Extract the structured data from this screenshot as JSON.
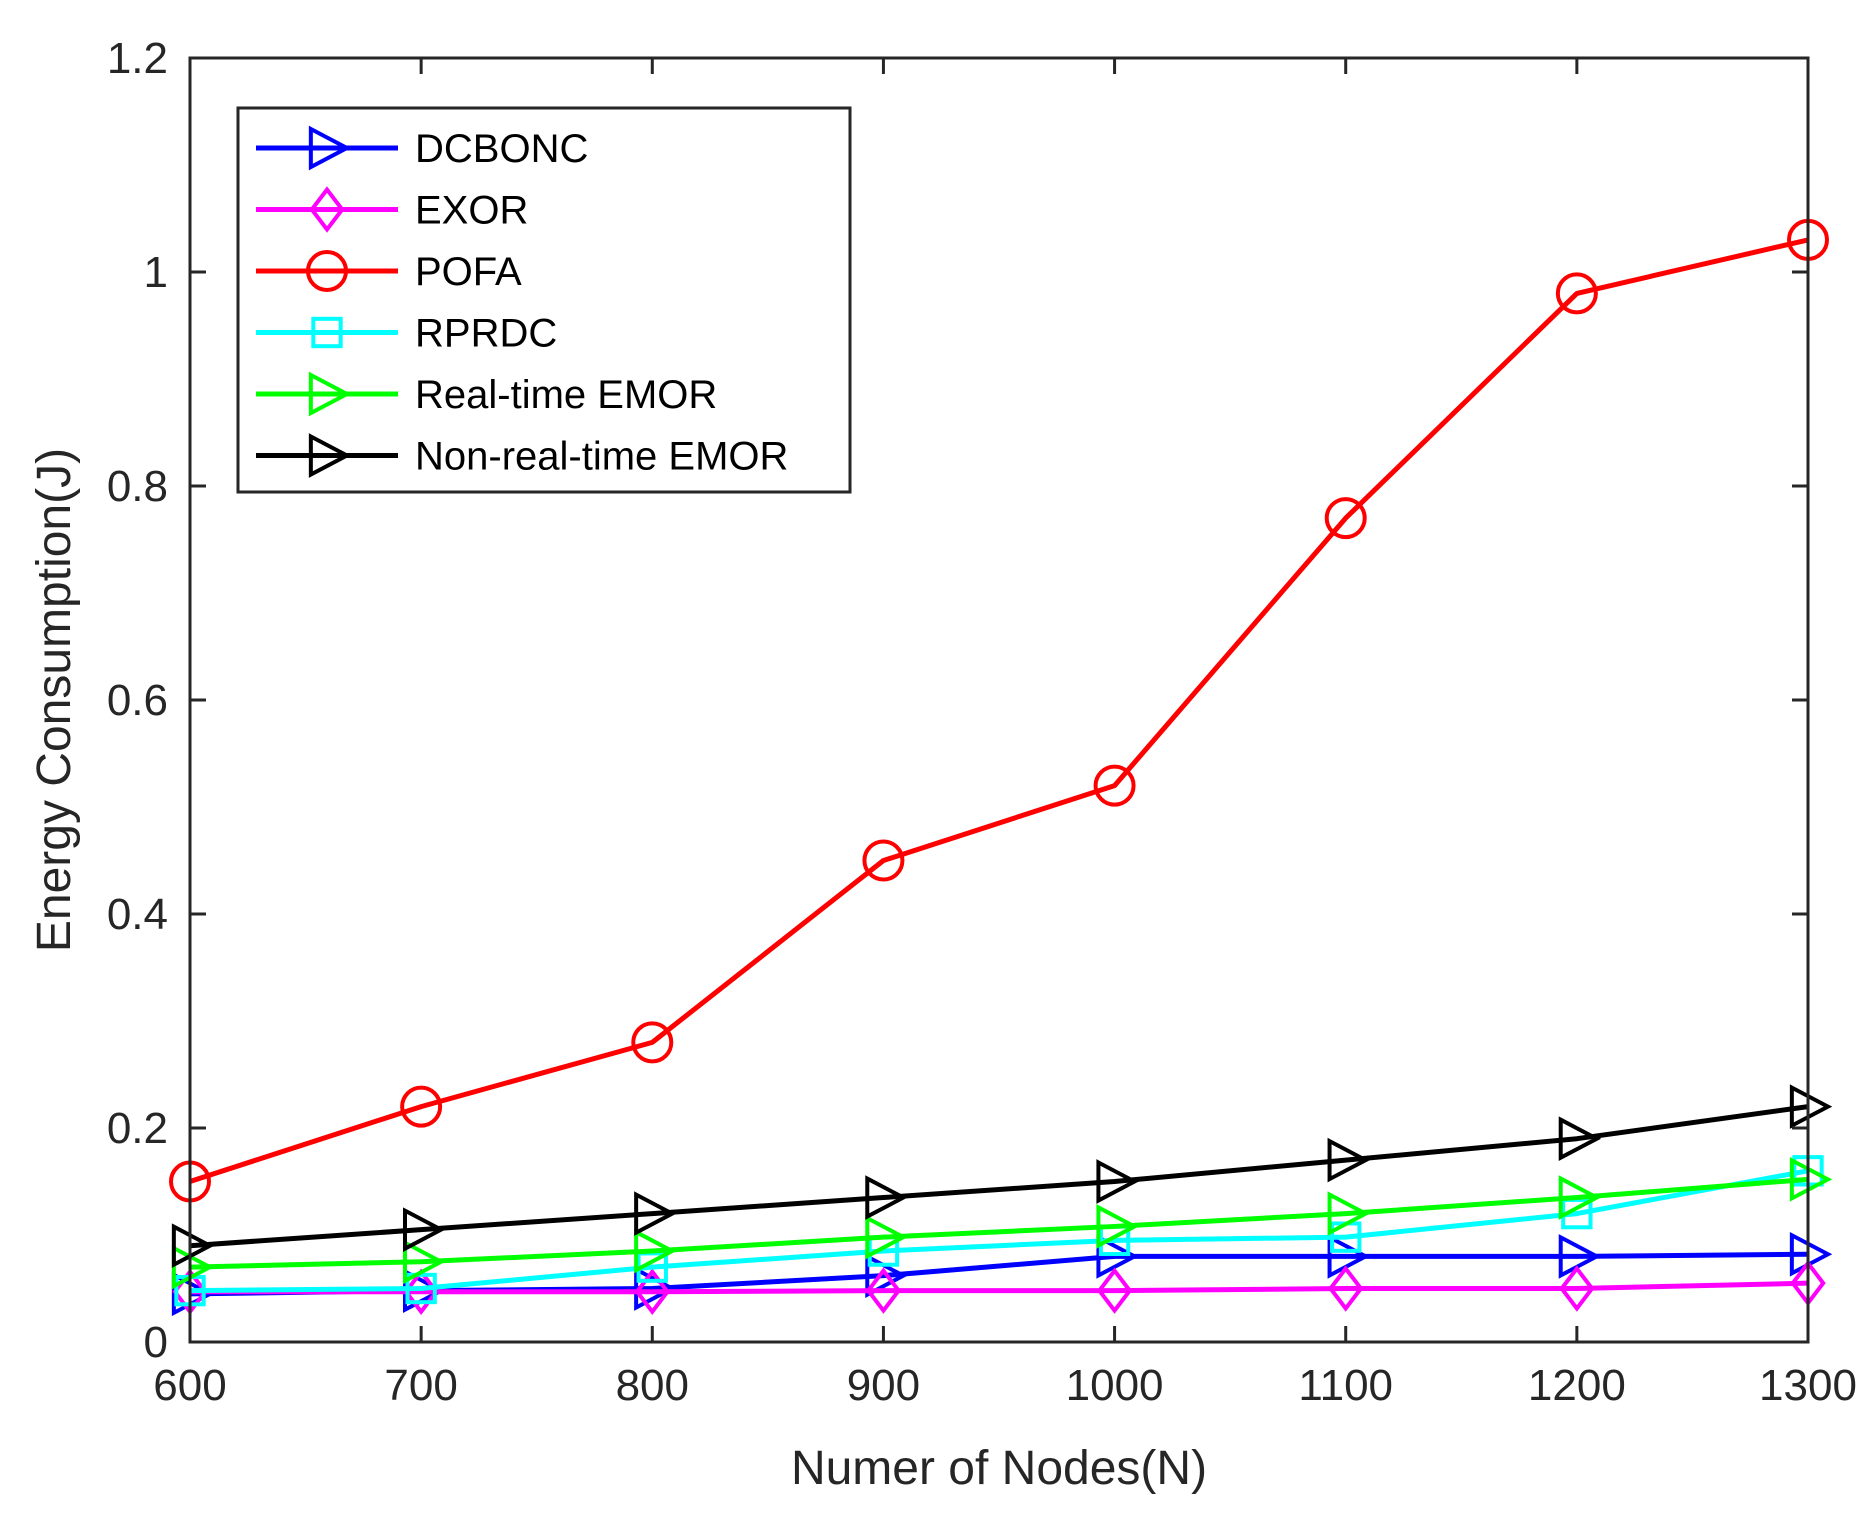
{
  "chart_data": {
    "type": "line",
    "title": "",
    "xlabel": "Numer of Nodes(N)",
    "ylabel": "Energy Consumption(J)",
    "xlim": [
      600,
      1300
    ],
    "ylim": [
      0,
      1.2
    ],
    "x": [
      600,
      700,
      800,
      900,
      1000,
      1100,
      1200,
      1300
    ],
    "xticks": [
      "600",
      "700",
      "800",
      "900",
      "1000",
      "1100",
      "1200",
      "1300"
    ],
    "yticks": [
      0,
      0.2,
      0.4,
      0.6,
      0.8,
      1,
      1.2
    ],
    "ytick_labels": [
      "0",
      "0.2",
      "0.4",
      "0.6",
      "0.8",
      "1",
      "1.2"
    ],
    "legend_position": "top-left",
    "grid": false,
    "series": [
      {
        "name": "DCBONC",
        "color": "#0000FF",
        "marker": "triangle-right",
        "values": [
          0.045,
          0.048,
          0.05,
          0.062,
          0.08,
          0.08,
          0.08,
          0.082
        ]
      },
      {
        "name": "EXOR",
        "color": "#FF00FF",
        "marker": "diamond",
        "values": [
          0.047,
          0.047,
          0.047,
          0.048,
          0.048,
          0.05,
          0.05,
          0.055
        ]
      },
      {
        "name": "POFA",
        "color": "#FF0000",
        "marker": "circle",
        "values": [
          0.15,
          0.22,
          0.28,
          0.45,
          0.52,
          0.77,
          0.98,
          1.03
        ]
      },
      {
        "name": "RPRDC",
        "color": "#00FFFF",
        "marker": "square",
        "values": [
          0.048,
          0.05,
          0.07,
          0.085,
          0.095,
          0.098,
          0.12,
          0.16
        ]
      },
      {
        "name": "Real-time EMOR",
        "color": "#00FF00",
        "marker": "triangle-right",
        "values": [
          0.07,
          0.075,
          0.085,
          0.098,
          0.108,
          0.12,
          0.135,
          0.152
        ]
      },
      {
        "name": "Non-real-time EMOR",
        "color": "#000000",
        "marker": "triangle-right",
        "values": [
          0.09,
          0.105,
          0.12,
          0.135,
          0.15,
          0.17,
          0.19,
          0.22
        ]
      }
    ]
  }
}
